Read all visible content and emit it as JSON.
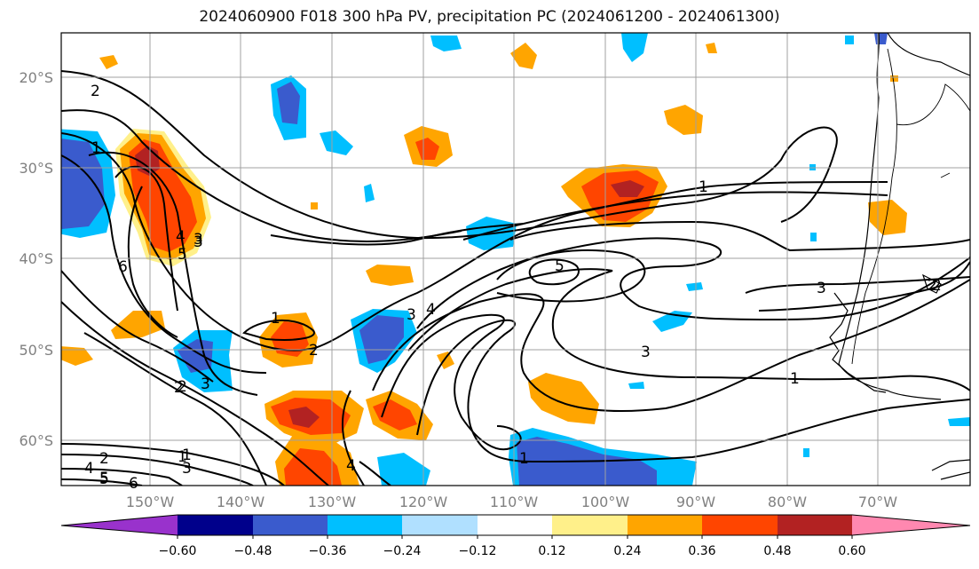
{
  "title": "2024060900 F018 300 hPa PV, precipitation PC (2024061200 - 2024061300)",
  "map": {
    "lon_ticks": [
      "150°W",
      "140°W",
      "130°W",
      "120°W",
      "110°W",
      "100°W",
      "90°W",
      "80°W",
      "70°W"
    ],
    "lat_ticks": [
      "20°S",
      "30°S",
      "40°S",
      "50°S",
      "60°S"
    ],
    "gridlines": true,
    "grid_color": "#a0a0a0"
  },
  "colorbar": {
    "ticks": [
      "−0.60",
      "−0.48",
      "−0.36",
      "−0.24",
      "−0.12",
      "0.12",
      "0.24",
      "0.36",
      "0.48",
      "0.60"
    ],
    "colors": [
      "#9932cc",
      "#00008b",
      "#3a5bcd",
      "#00bfff",
      "#b0e0ff",
      "#ffffff",
      "#fff08a",
      "#ffa500",
      "#ff4500",
      "#b22222",
      "#ff88b0"
    ],
    "extend": "both"
  },
  "pv_contour_labels": [
    "2",
    "1",
    "6",
    "5",
    "4",
    "3",
    "1",
    "2",
    "3",
    "2",
    "1",
    "3",
    "4",
    "5",
    "1",
    "3",
    "4",
    "2",
    "5",
    "3",
    "2",
    "1",
    "3",
    "1",
    "1",
    "2",
    "4",
    "3",
    "2",
    "6",
    "5"
  ]
}
